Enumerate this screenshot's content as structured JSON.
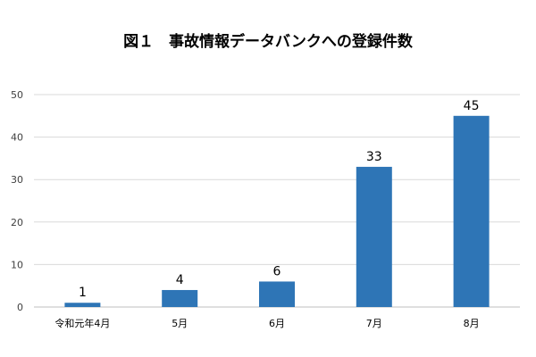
{
  "chart_data": {
    "type": "bar",
    "title": "図１　事故情報データバンクへの登録件数",
    "categories": [
      "令和元年4月",
      "5月",
      "6月",
      "7月",
      "8月"
    ],
    "values": [
      1,
      4,
      6,
      33,
      45
    ],
    "ylim": [
      0,
      50
    ],
    "yticks": [
      0,
      10,
      20,
      30,
      40,
      50
    ],
    "grid": true,
    "bar_color": "#2e75b6",
    "grid_color": "#d9d9d9",
    "data_labels": true
  }
}
